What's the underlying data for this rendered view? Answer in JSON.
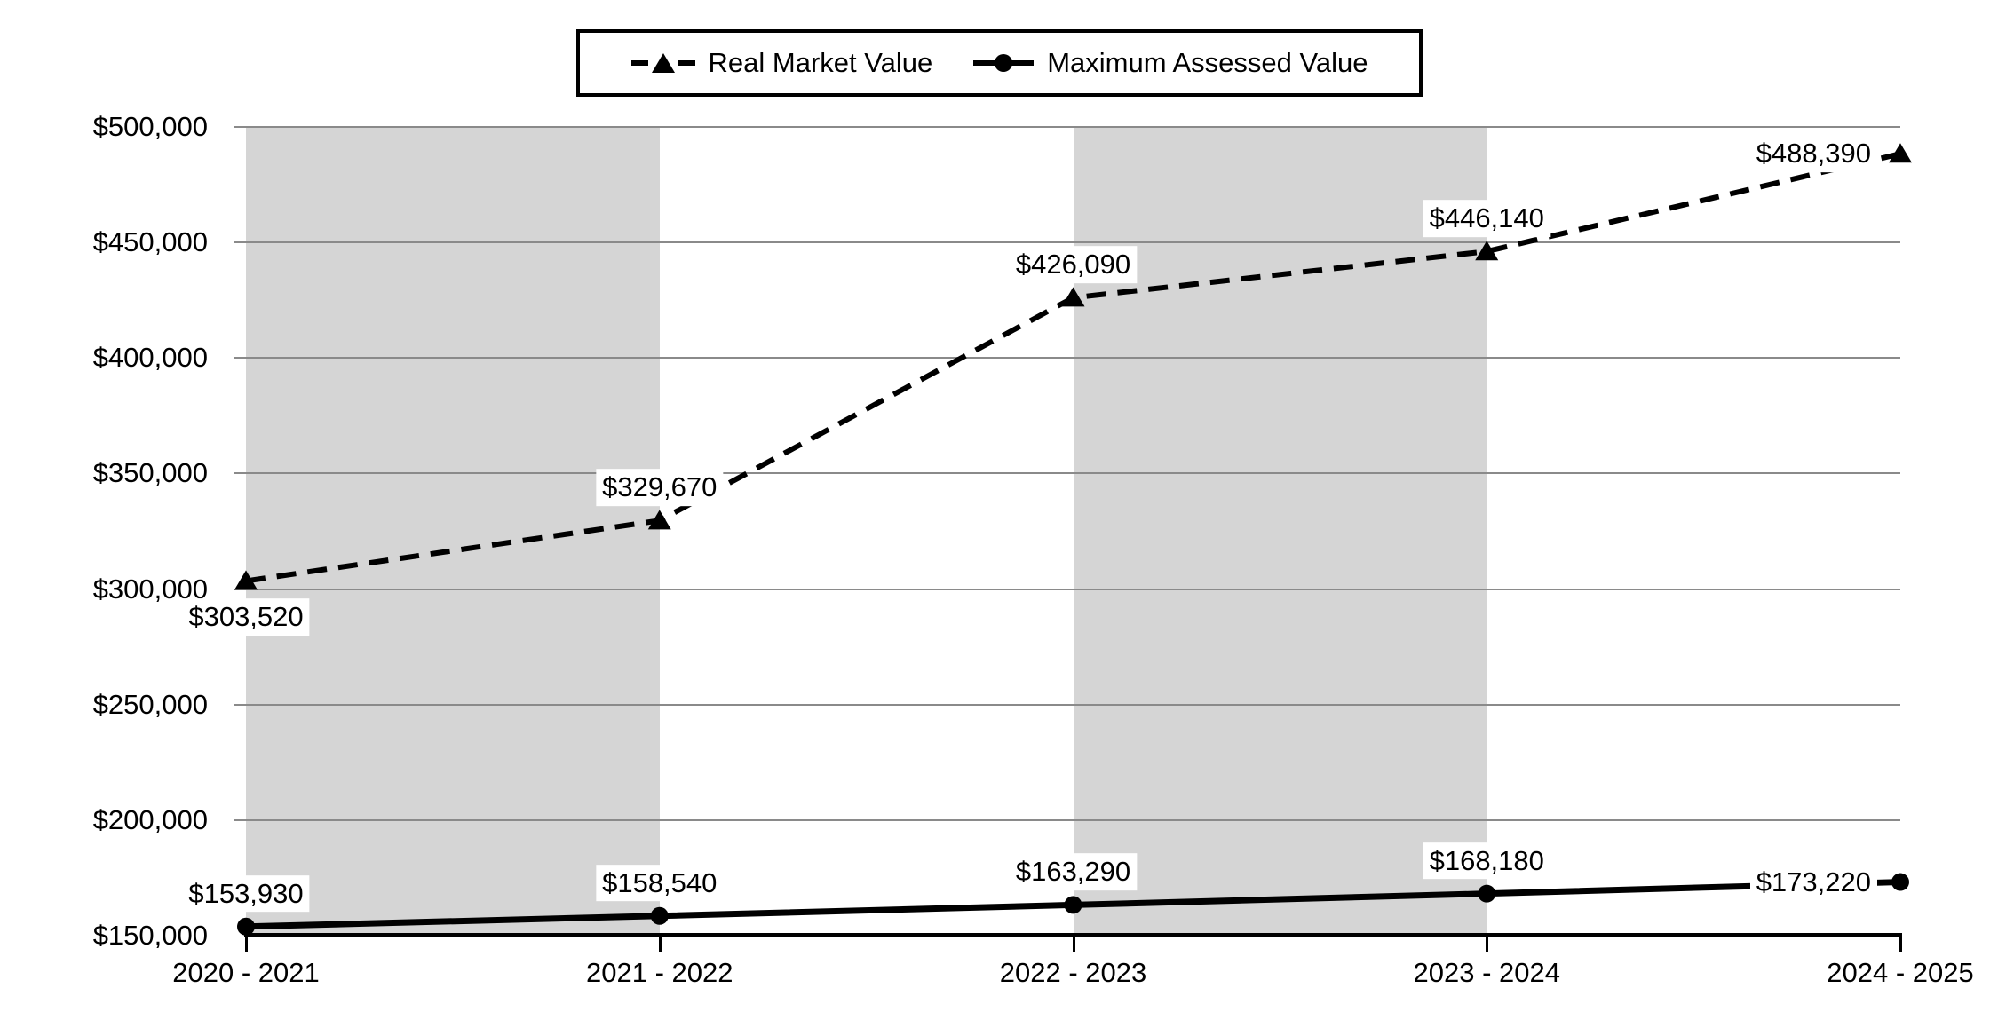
{
  "chart_data": {
    "type": "line",
    "title": "",
    "categories": [
      "2020 - 2021",
      "2021 - 2022",
      "2022 - 2023",
      "2023 - 2024",
      "2024 - 2025"
    ],
    "series": [
      {
        "name": "Real Market Value",
        "line_style": "dashed",
        "marker": "triangle",
        "color": "#000000",
        "values": [
          303520,
          329670,
          426090,
          446140,
          488390
        ],
        "data_labels": [
          "$303,520",
          "$329,670",
          "$426,090",
          "$446,140",
          "$488,390"
        ],
        "label_placement": [
          "below",
          "above",
          "above",
          "above",
          "left"
        ]
      },
      {
        "name": "Maximum Assessed Value",
        "line_style": "solid",
        "marker": "circle",
        "color": "#000000",
        "values": [
          153930,
          158540,
          163290,
          168180,
          173220
        ],
        "data_labels": [
          "$153,930",
          "$158,540",
          "$163,290",
          "$168,180",
          "$173,220"
        ],
        "label_placement": [
          "above",
          "above",
          "above",
          "above",
          "left"
        ]
      }
    ],
    "xlabel": "",
    "ylabel": "",
    "y_axis": {
      "min": 150000,
      "max": 500000,
      "step": 50000,
      "tick_values": [
        150000,
        200000,
        250000,
        300000,
        350000,
        400000,
        450000,
        500000
      ],
      "tick_labels": [
        "$150,000",
        "$200,000",
        "$250,000",
        "$300,000",
        "$350,000",
        "$400,000",
        "$450,000",
        "$500,000"
      ]
    },
    "grid": true,
    "legend_position": "top",
    "plot_bands": {
      "intervals": [
        [
          0,
          1
        ],
        [
          2,
          3
        ]
      ],
      "color": "#d5d5d5"
    },
    "colors": {
      "foreground": "#000000",
      "gridline": "#8a8a8a",
      "band": "#d5d5d5",
      "background": "#ffffff",
      "data_label_background": "#ffffff"
    }
  }
}
